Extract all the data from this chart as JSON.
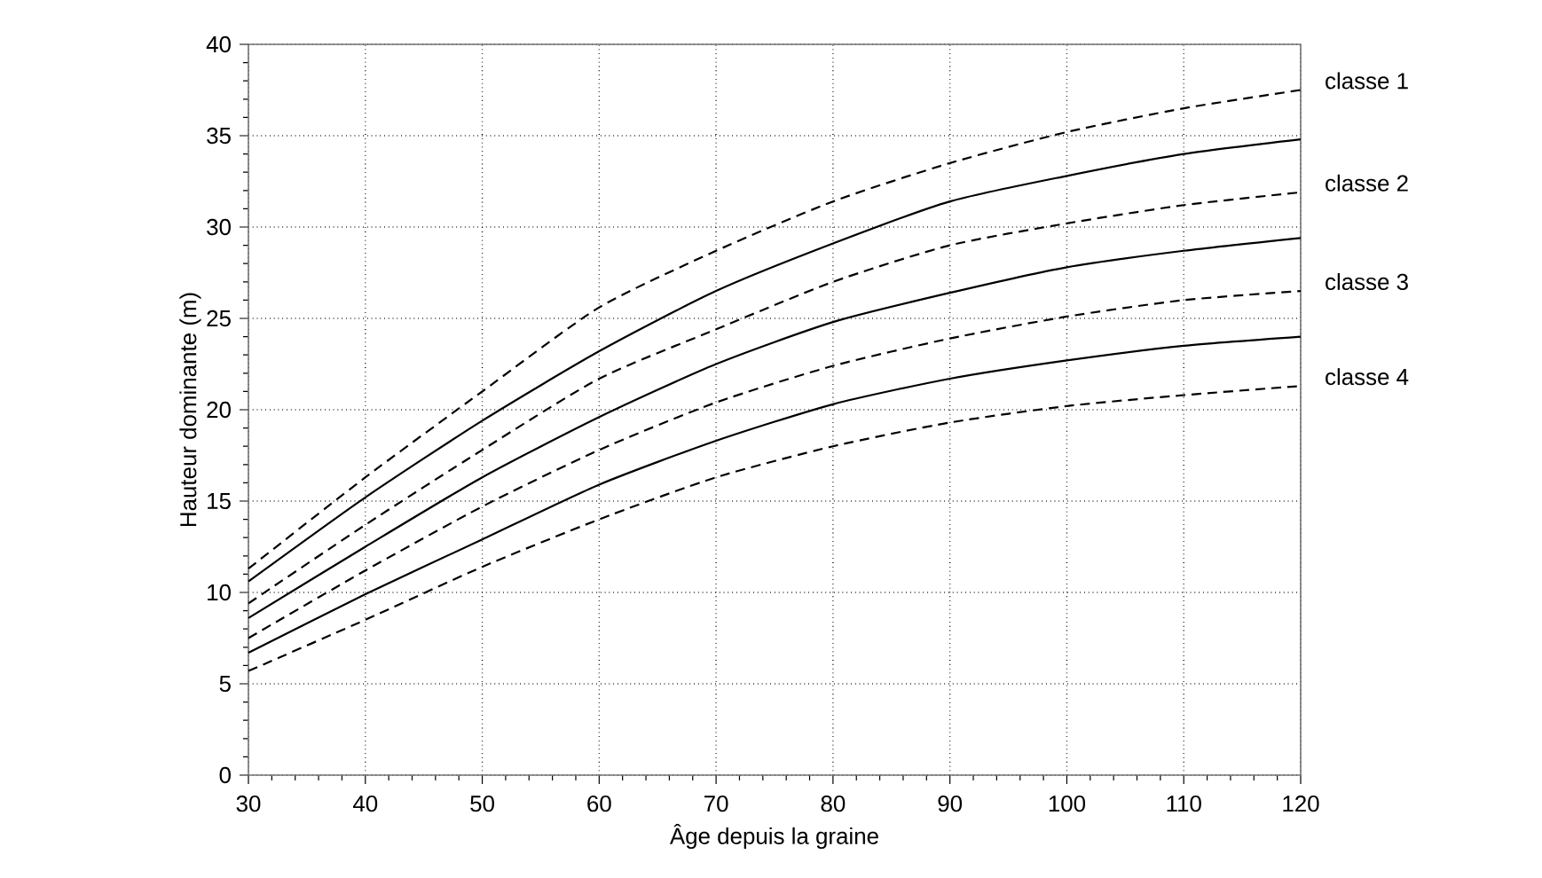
{
  "chart_data": {
    "type": "line",
    "xlabel": "Âge depuis la graine",
    "ylabel": "Hauteur dominante  (m)",
    "x": [
      30,
      40,
      50,
      60,
      70,
      80,
      90,
      100,
      110,
      120
    ],
    "series": [
      {
        "name": "classe 1",
        "color": "#000000",
        "line_style": "dashed",
        "values": [
          11.3,
          16.3,
          21.0,
          25.6,
          28.7,
          31.4,
          33.5,
          35.2,
          36.5,
          37.5
        ]
      },
      {
        "color": "#000000",
        "line_style": "solid",
        "values": [
          10.6,
          15.2,
          19.4,
          23.2,
          26.5,
          29.1,
          31.4,
          32.8,
          34.0,
          34.8
        ]
      },
      {
        "name": "classe 2",
        "color": "#000000",
        "line_style": "dashed",
        "values": [
          9.4,
          13.7,
          17.8,
          21.7,
          24.4,
          27.0,
          29.0,
          30.2,
          31.2,
          31.9
        ]
      },
      {
        "color": "#000000",
        "line_style": "solid",
        "values": [
          8.6,
          12.5,
          16.3,
          19.6,
          22.5,
          24.8,
          26.4,
          27.8,
          28.7,
          29.4
        ]
      },
      {
        "name": "classe 3",
        "color": "#000000",
        "line_style": "dashed",
        "values": [
          7.5,
          11.2,
          14.7,
          17.8,
          20.4,
          22.4,
          23.9,
          25.1,
          26.0,
          26.5
        ]
      },
      {
        "color": "#000000",
        "line_style": "solid",
        "values": [
          6.7,
          9.9,
          12.9,
          15.9,
          18.3,
          20.3,
          21.7,
          22.7,
          23.5,
          24.0
        ]
      },
      {
        "name": "classe 4",
        "color": "#000000",
        "line_style": "dashed",
        "values": [
          5.7,
          8.5,
          11.4,
          14.0,
          16.3,
          18.0,
          19.3,
          20.2,
          20.8,
          21.3
        ]
      }
    ],
    "xlim": [
      30,
      120
    ],
    "xticks": [
      30,
      40,
      50,
      60,
      70,
      80,
      90,
      100,
      110,
      120
    ],
    "ylim": [
      0,
      40
    ],
    "yticks": [
      0,
      5,
      10,
      15,
      20,
      25,
      30,
      35,
      40
    ],
    "grid": true,
    "legend": false
  }
}
